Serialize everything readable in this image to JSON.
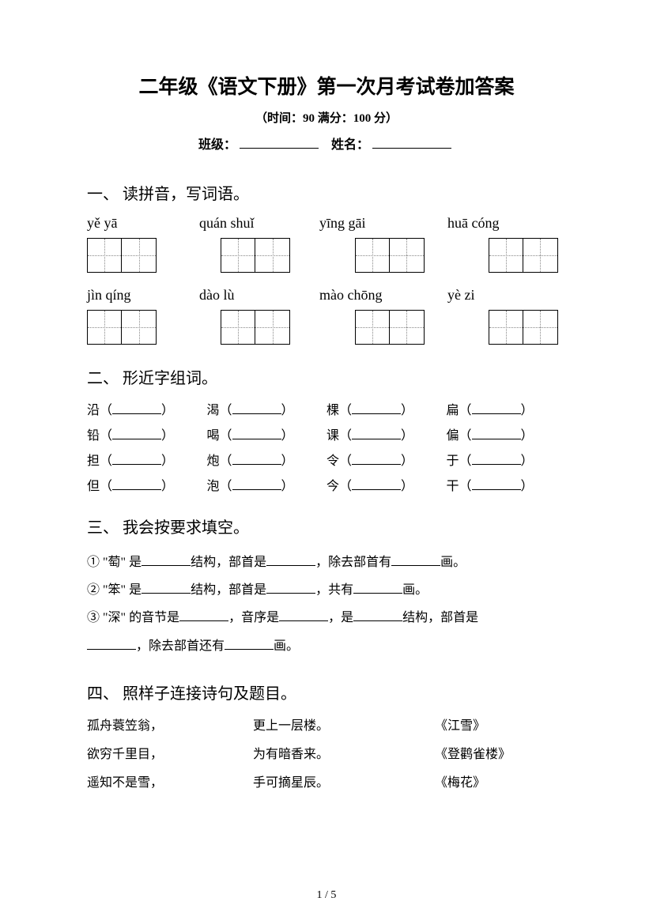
{
  "header": {
    "title": "二年级《语文下册》第一次月考试卷加答案",
    "subtitle": "（时间：90   满分：100 分）",
    "class_label": "班级：",
    "name_label": "姓名："
  },
  "q1": {
    "heading": "一、 读拼音，写词语。",
    "row1": [
      "yě    yā",
      "quán shuǐ",
      "yīng   gāi",
      "huā  cóng"
    ],
    "row2": [
      "jìn    qíng",
      "dào    lù",
      "mào chōng",
      "yè    zi"
    ]
  },
  "q2": {
    "heading": "二、 形近字组词。",
    "rows": [
      [
        "沿",
        "渴",
        "棵",
        "扁"
      ],
      [
        "铅",
        "喝",
        "课",
        "偏"
      ],
      [
        "担",
        "炮",
        "令",
        "于"
      ],
      [
        "但",
        "泡",
        "今",
        "干"
      ]
    ]
  },
  "q3": {
    "heading": "三、 我会按要求填空。",
    "lines": {
      "l1a": "① \"萄\" 是",
      "l1b": "结构，部首是",
      "l1c": "，除去部首有",
      "l1d": "画。",
      "l2a": "② \"笨\" 是",
      "l2b": "结构，部首是",
      "l2c": "，共有",
      "l2d": "画。",
      "l3a": "③ \"深\" 的音节是",
      "l3b": "，音序是",
      "l3c": "，是",
      "l3d": "结构，部首是",
      "l3e": "，除去部首还有",
      "l3f": "画。"
    }
  },
  "q4": {
    "heading": "四、 照样子连接诗句及题目。",
    "rows": [
      [
        "孤舟蓑笠翁，",
        "更上一层楼。",
        "《江雪》"
      ],
      [
        "欲穷千里目，",
        "为有暗香来。",
        "《登鹳雀楼》"
      ],
      [
        "遥知不是雪，",
        "手可摘星辰。",
        "《梅花》"
      ]
    ]
  },
  "footer": {
    "page": "1  /  5"
  }
}
